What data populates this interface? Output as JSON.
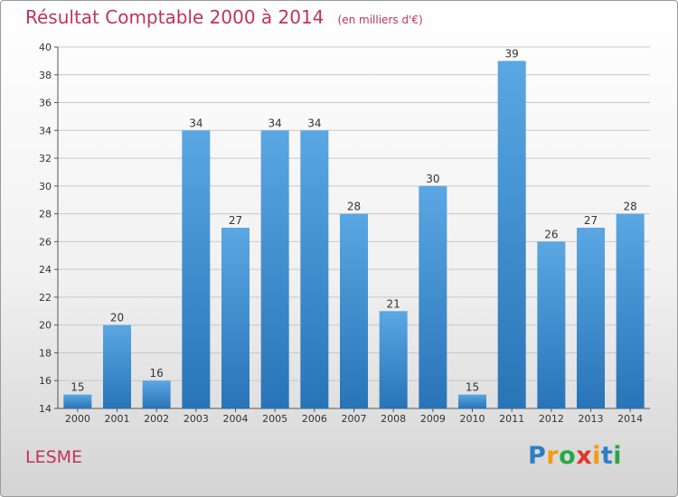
{
  "title": "Résultat Comptable 2000 à 2014",
  "unit": "(en milliers d'€)",
  "commune": "LESME",
  "logo": {
    "letters": [
      "P",
      "r",
      "o",
      "x",
      "i",
      "t",
      "i"
    ],
    "colors": [
      "#2e7fc2",
      "#f39c12",
      "#27a844",
      "#e2342b",
      "#f39c12",
      "#2e7fc2",
      "#27a844"
    ]
  },
  "colors": {
    "title": "#c0335a",
    "bar_light": "#5aa7e3",
    "bar_dark": "#2874b7"
  },
  "chart_data": {
    "type": "bar",
    "categories": [
      "2000",
      "2001",
      "2002",
      "2003",
      "2004",
      "2005",
      "2006",
      "2007",
      "2008",
      "2009",
      "2010",
      "2011",
      "2012",
      "2013",
      "2014"
    ],
    "values": [
      15,
      20,
      16,
      34,
      27,
      34,
      34,
      28,
      21,
      30,
      15,
      39,
      26,
      27,
      28
    ],
    "ylim": [
      14,
      40
    ],
    "yticks": [
      14,
      16,
      18,
      20,
      22,
      24,
      26,
      28,
      30,
      32,
      34,
      36,
      38,
      40
    ],
    "grid": true,
    "data_labels": true
  }
}
